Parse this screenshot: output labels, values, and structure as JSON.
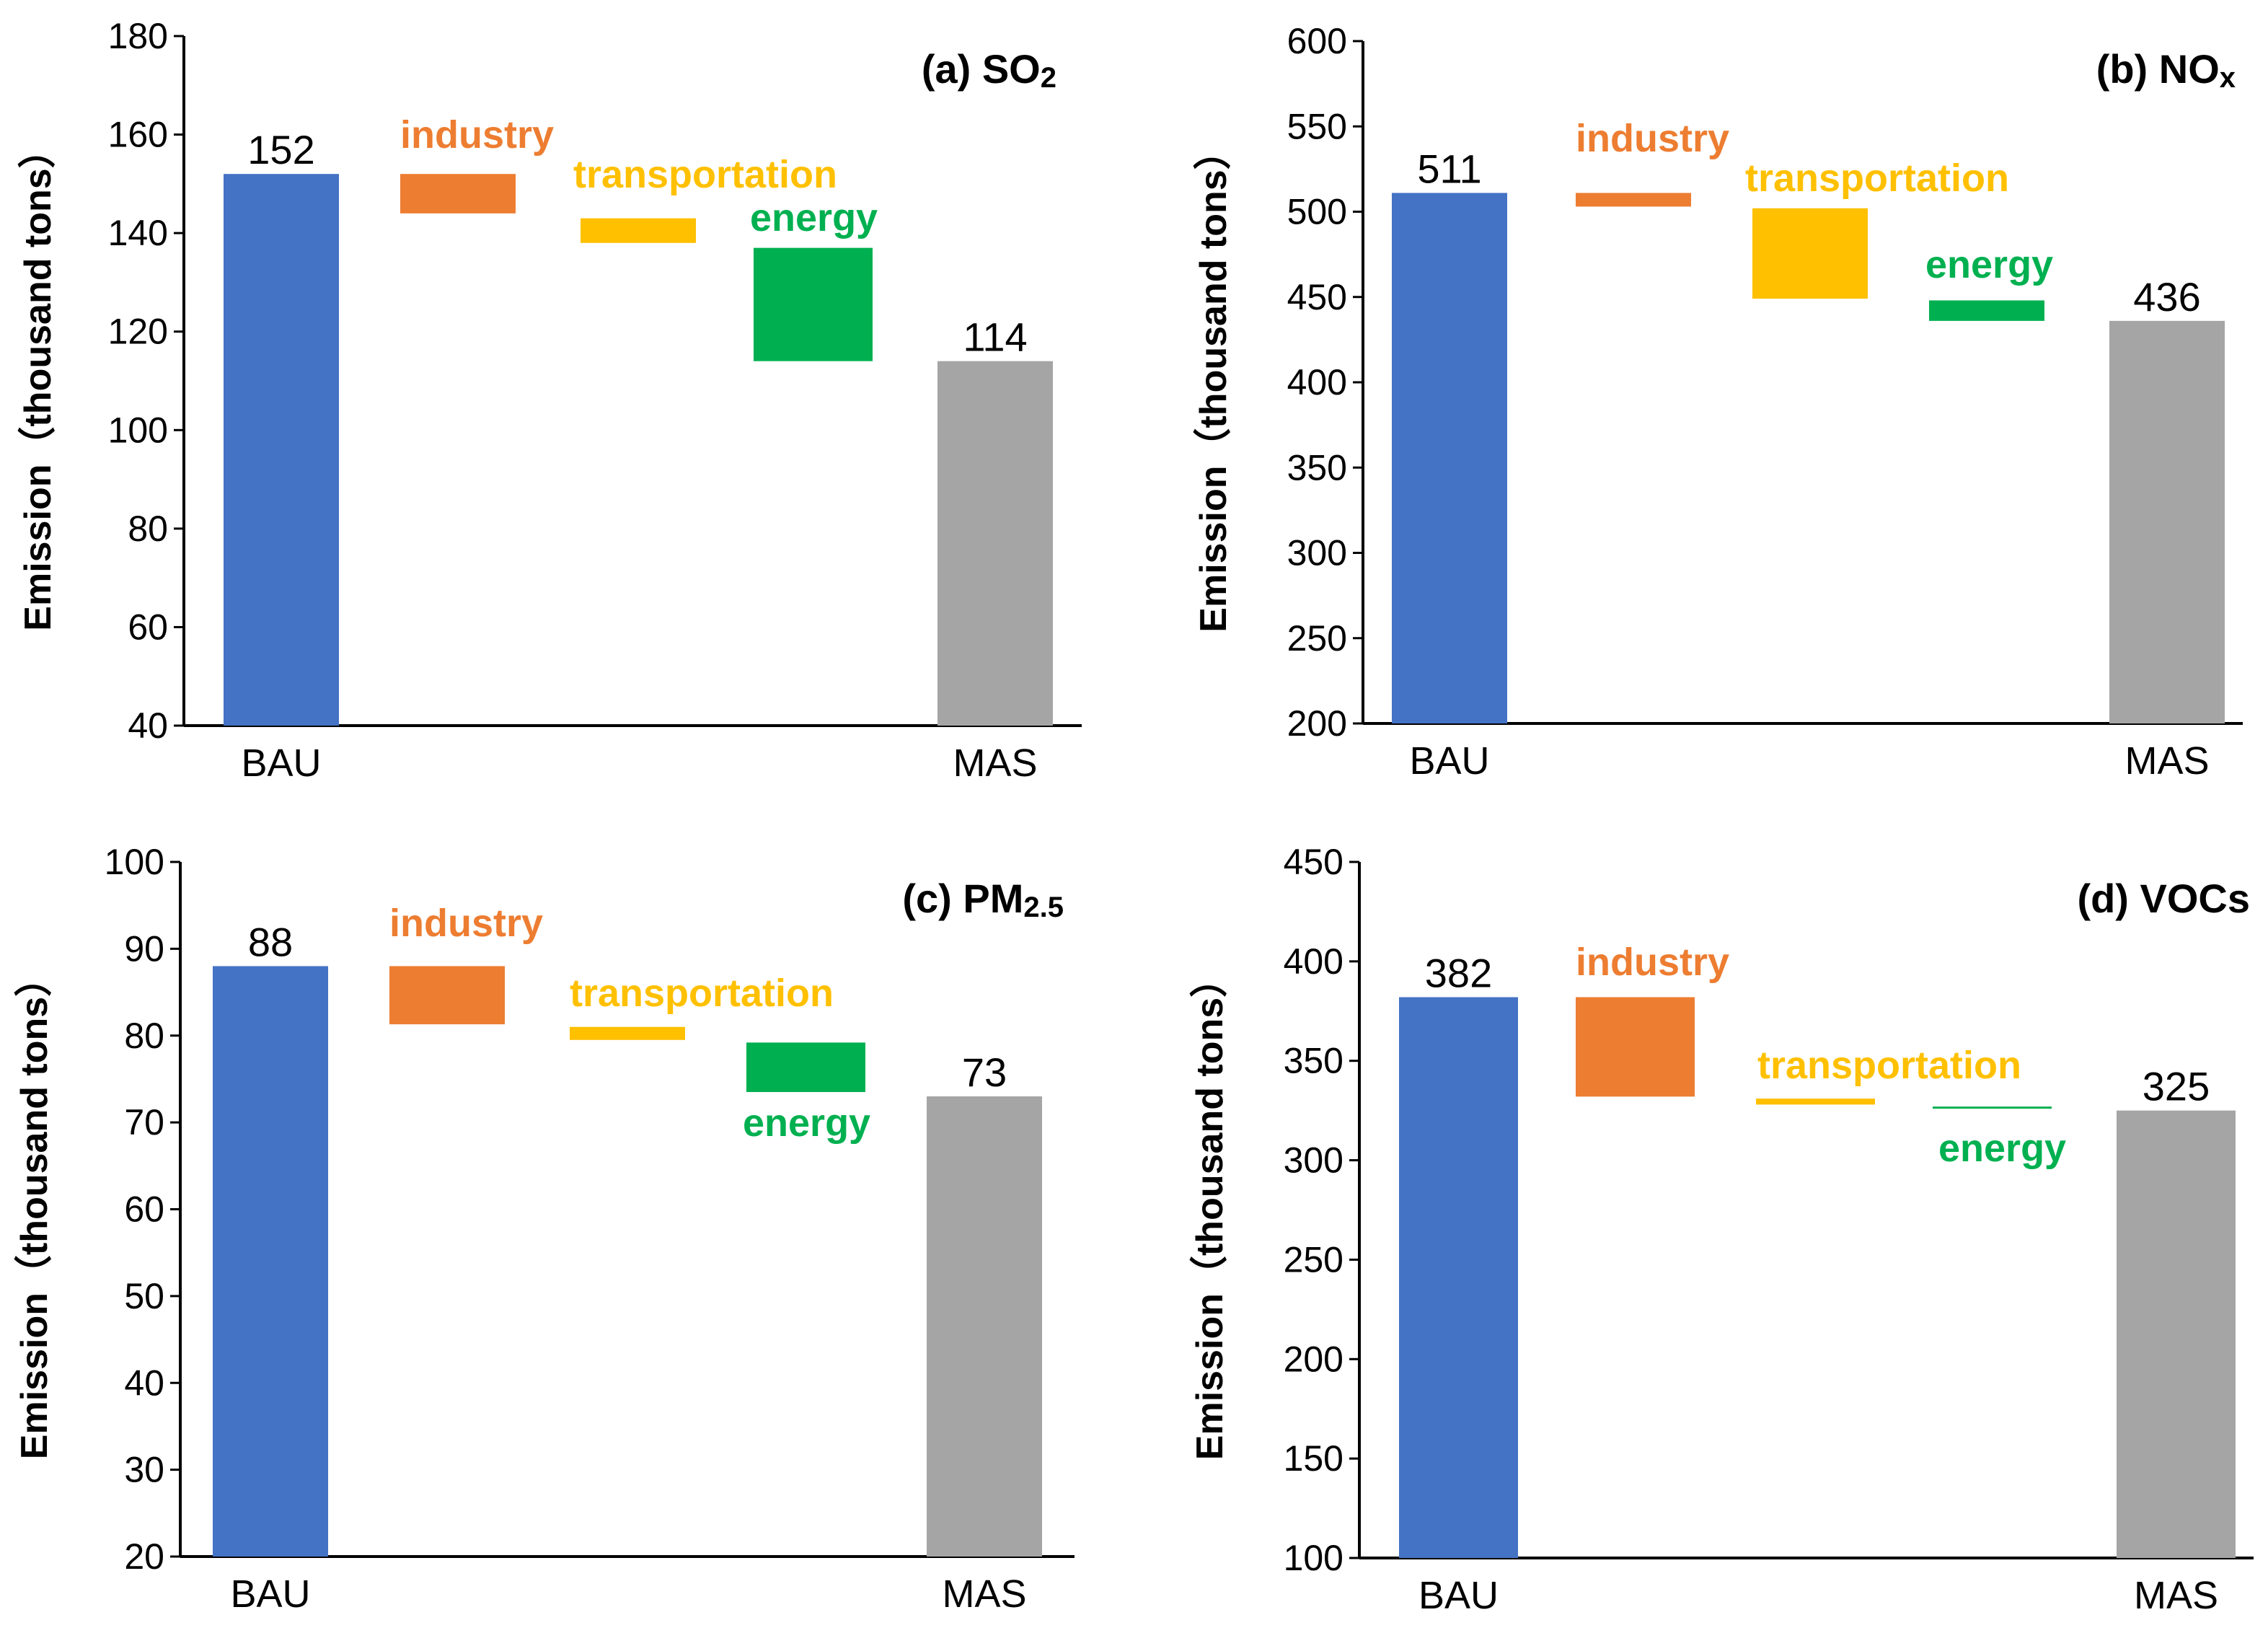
{
  "colors": {
    "bau": "#4472C4",
    "mas": "#A5A5A5",
    "industry": "#ED7D31",
    "transportation": "#FFC000",
    "energy": "#00B050",
    "axis": "#000000"
  },
  "chart_data": [
    {
      "type": "bar",
      "subtype": "waterfall",
      "panel": "a",
      "title": "(a) SO",
      "title_subscript": "2",
      "ylabel": "Emission（thousand tons）",
      "ylim": [
        40,
        180
      ],
      "yticks": [
        40,
        60,
        80,
        100,
        120,
        140,
        160,
        180
      ],
      "categories": [
        "BAU",
        "MAS"
      ],
      "bau": {
        "value": 152,
        "label": "152"
      },
      "mas": {
        "value": 114,
        "label": "114"
      },
      "steps": [
        {
          "name": "industry",
          "label": "industry",
          "from": 152,
          "to": 144
        },
        {
          "name": "transportation",
          "label": "transportation",
          "from": 143,
          "to": 138
        },
        {
          "name": "energy",
          "label": "energy",
          "from": 137,
          "to": 114
        }
      ]
    },
    {
      "type": "bar",
      "subtype": "waterfall",
      "panel": "b",
      "title": "(b) NO",
      "title_subscript": "x",
      "ylabel": "Emission（thousand tons）",
      "ylim": [
        200,
        600
      ],
      "yticks": [
        200,
        250,
        300,
        350,
        400,
        450,
        500,
        550,
        600
      ],
      "categories": [
        "BAU",
        "MAS"
      ],
      "bau": {
        "value": 511,
        "label": "511"
      },
      "mas": {
        "value": 436,
        "label": "436"
      },
      "steps": [
        {
          "name": "industry",
          "label": "industry",
          "from": 511,
          "to": 503
        },
        {
          "name": "transportation",
          "label": "transportation",
          "from": 502,
          "to": 449
        },
        {
          "name": "energy",
          "label": "energy",
          "from": 448,
          "to": 436
        }
      ]
    },
    {
      "type": "bar",
      "subtype": "waterfall",
      "panel": "c",
      "title": "(c) PM",
      "title_subscript": "2.5",
      "ylabel": "Emission（thousand tons）",
      "ylim": [
        20,
        100
      ],
      "yticks": [
        20,
        30,
        40,
        50,
        60,
        70,
        80,
        90,
        100
      ],
      "categories": [
        "BAU",
        "MAS"
      ],
      "bau": {
        "value": 88,
        "label": "88"
      },
      "mas": {
        "value": 73,
        "label": "73"
      },
      "steps": [
        {
          "name": "industry",
          "label": "industry",
          "from": 88,
          "to": 81.3
        },
        {
          "name": "transportation",
          "label": "transportation",
          "from": 81,
          "to": 79.5
        },
        {
          "name": "energy",
          "label": "energy",
          "from": 79.2,
          "to": 73.5
        }
      ]
    },
    {
      "type": "bar",
      "subtype": "waterfall",
      "panel": "d",
      "title": "(d) VOCs",
      "title_subscript": "",
      "ylabel": "Emission（thousand tons）",
      "ylim": [
        100,
        450
      ],
      "yticks": [
        100,
        150,
        200,
        250,
        300,
        350,
        400,
        450
      ],
      "categories": [
        "BAU",
        "MAS"
      ],
      "bau": {
        "value": 382,
        "label": "382"
      },
      "mas": {
        "value": 325,
        "label": "325"
      },
      "steps": [
        {
          "name": "industry",
          "label": "industry",
          "from": 382,
          "to": 332
        },
        {
          "name": "transportation",
          "label": "transportation",
          "from": 331,
          "to": 328
        },
        {
          "name": "energy",
          "label": "energy",
          "from": 327,
          "to": 326
        }
      ]
    }
  ]
}
